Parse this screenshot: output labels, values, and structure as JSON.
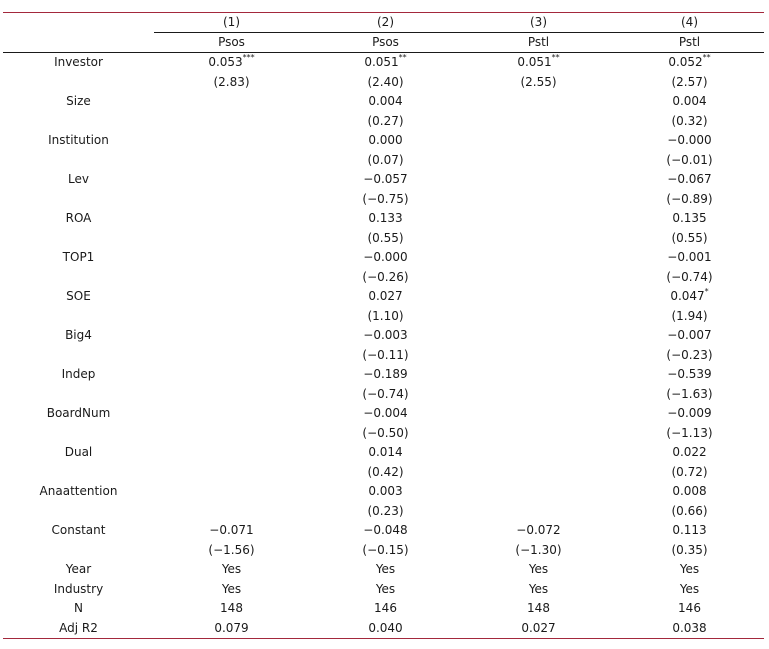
{
  "header": {
    "numbers": [
      "(1)",
      "(2)",
      "(3)",
      "(4)"
    ],
    "depvars": [
      "Psos",
      "Psos",
      "Pstl",
      "Pstl"
    ]
  },
  "rows": [
    {
      "label": "Investor",
      "coef": [
        [
          "0.053",
          "***"
        ],
        [
          "0.051",
          "**"
        ],
        [
          "0.051",
          "**"
        ],
        [
          "0.052",
          "**"
        ]
      ],
      "t": [
        "(2.83)",
        "(2.40)",
        "(2.55)",
        "(2.57)"
      ]
    },
    {
      "label": "Size",
      "coef": [
        [
          "",
          ""
        ],
        [
          "0.004",
          ""
        ],
        [
          "",
          ""
        ],
        [
          "0.004",
          ""
        ]
      ],
      "t": [
        "",
        "(0.27)",
        "",
        "(0.32)"
      ]
    },
    {
      "label": "Institution",
      "coef": [
        [
          "",
          ""
        ],
        [
          "0.000",
          ""
        ],
        [
          "",
          ""
        ],
        [
          "−0.000",
          ""
        ]
      ],
      "t": [
        "",
        "(0.07)",
        "",
        "(−0.01)"
      ]
    },
    {
      "label": "Lev",
      "coef": [
        [
          "",
          ""
        ],
        [
          "−0.057",
          ""
        ],
        [
          "",
          ""
        ],
        [
          "−0.067",
          ""
        ]
      ],
      "t": [
        "",
        "(−0.75)",
        "",
        "(−0.89)"
      ]
    },
    {
      "label": "ROA",
      "coef": [
        [
          "",
          ""
        ],
        [
          "0.133",
          ""
        ],
        [
          "",
          ""
        ],
        [
          "0.135",
          ""
        ]
      ],
      "t": [
        "",
        "(0.55)",
        "",
        "(0.55)"
      ]
    },
    {
      "label": "TOP1",
      "coef": [
        [
          "",
          ""
        ],
        [
          "−0.000",
          ""
        ],
        [
          "",
          ""
        ],
        [
          "−0.001",
          ""
        ]
      ],
      "t": [
        "",
        "(−0.26)",
        "",
        "(−0.74)"
      ]
    },
    {
      "label": "SOE",
      "coef": [
        [
          "",
          ""
        ],
        [
          "0.027",
          ""
        ],
        [
          "",
          ""
        ],
        [
          "0.047",
          "*"
        ]
      ],
      "t": [
        "",
        "(1.10)",
        "",
        "(1.94)"
      ]
    },
    {
      "label": "Big4",
      "coef": [
        [
          "",
          ""
        ],
        [
          "−0.003",
          ""
        ],
        [
          "",
          ""
        ],
        [
          "−0.007",
          ""
        ]
      ],
      "t": [
        "",
        "(−0.11)",
        "",
        "(−0.23)"
      ]
    },
    {
      "label": "Indep",
      "coef": [
        [
          "",
          ""
        ],
        [
          "−0.189",
          ""
        ],
        [
          "",
          ""
        ],
        [
          "−0.539",
          ""
        ]
      ],
      "t": [
        "",
        "(−0.74)",
        "",
        "(−1.63)"
      ]
    },
    {
      "label": "BoardNum",
      "coef": [
        [
          "",
          ""
        ],
        [
          "−0.004",
          ""
        ],
        [
          "",
          ""
        ],
        [
          "−0.009",
          ""
        ]
      ],
      "t": [
        "",
        "(−0.50)",
        "",
        "(−1.13)"
      ]
    },
    {
      "label": "Dual",
      "coef": [
        [
          "",
          ""
        ],
        [
          "0.014",
          ""
        ],
        [
          "",
          ""
        ],
        [
          "0.022",
          ""
        ]
      ],
      "t": [
        "",
        "(0.42)",
        "",
        "(0.72)"
      ]
    },
    {
      "label": "Anaattention",
      "coef": [
        [
          "",
          ""
        ],
        [
          "0.003",
          ""
        ],
        [
          "",
          ""
        ],
        [
          "0.008",
          ""
        ]
      ],
      "t": [
        "",
        "(0.23)",
        "",
        "(0.66)"
      ]
    },
    {
      "label": "Constant",
      "coef": [
        [
          "−0.071",
          ""
        ],
        [
          "−0.048",
          ""
        ],
        [
          "−0.072",
          ""
        ],
        [
          "0.113",
          ""
        ]
      ],
      "t": [
        "(−1.56)",
        "(−0.15)",
        "(−1.30)",
        "(0.35)"
      ]
    }
  ],
  "footer": [
    {
      "label": "Year",
      "values": [
        "Yes",
        "Yes",
        "Yes",
        "Yes"
      ]
    },
    {
      "label": "Industry",
      "values": [
        "Yes",
        "Yes",
        "Yes",
        "Yes"
      ]
    },
    {
      "label": "N",
      "values": [
        "148",
        "146",
        "148",
        "146"
      ]
    },
    {
      "label": "Adj R2",
      "values": [
        "0.079",
        "0.040",
        "0.027",
        "0.038"
      ]
    }
  ],
  "colors": {
    "rule_accent": "#a3283c",
    "text": "#1a1a1a"
  }
}
